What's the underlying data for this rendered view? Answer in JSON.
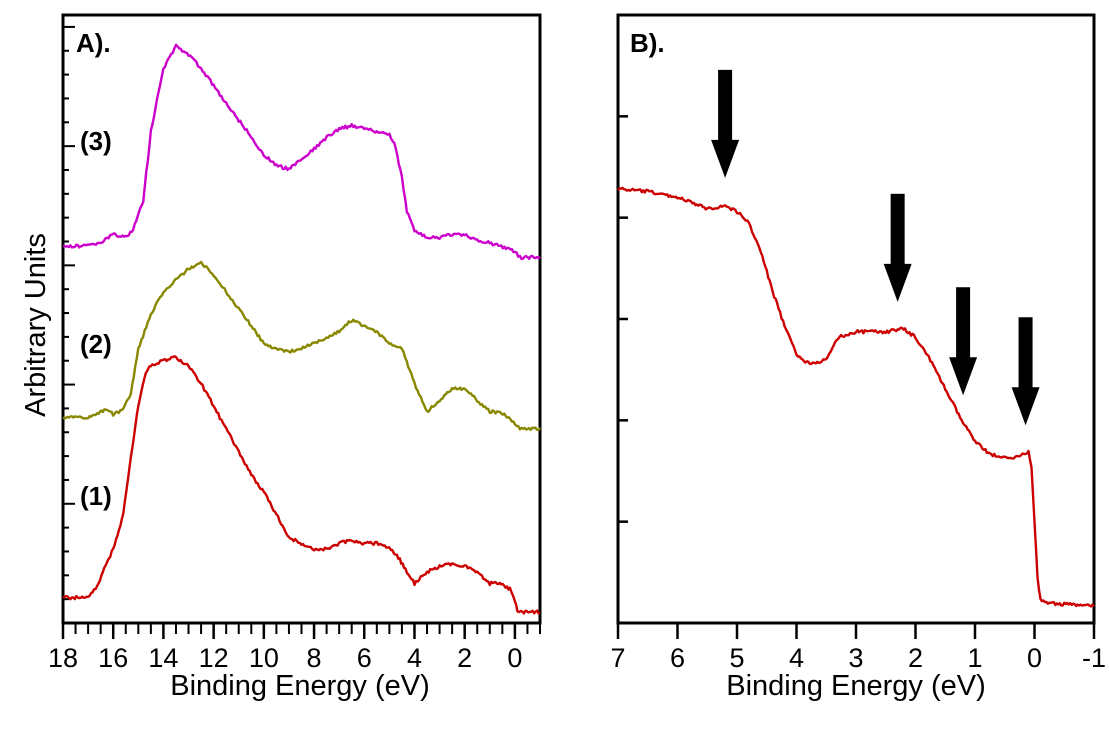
{
  "ylabel": "Arbitrary Units",
  "chart_data": [
    {
      "type": "line",
      "panel_label": "A).",
      "xlabel": "Binding Energy (eV)",
      "ylabel": "Arbitrary Units",
      "xlim": [
        18,
        -1
      ],
      "ylim": [
        0,
        1
      ],
      "x_axis_reversed": true,
      "x_ticks": [
        18,
        16,
        14,
        12,
        10,
        8,
        6,
        4,
        2,
        0
      ],
      "y_tick_labels_shown": false,
      "grid": false,
      "series": [
        {
          "name": "(1)",
          "color": "#cc0000",
          "points": [
            [
              -1,
              0.0
            ],
            [
              -0.3,
              0.0
            ],
            [
              -0.1,
              0.0
            ],
            [
              0.0,
              0.02
            ],
            [
              0.2,
              0.04
            ],
            [
              0.6,
              0.05
            ],
            [
              1,
              0.05
            ],
            [
              1.5,
              0.07
            ],
            [
              2,
              0.08
            ],
            [
              2.5,
              0.085
            ],
            [
              3,
              0.08
            ],
            [
              3.5,
              0.07
            ],
            [
              4,
              0.05
            ],
            [
              4.3,
              0.07
            ],
            [
              4.7,
              0.1
            ],
            [
              5,
              0.11
            ],
            [
              5.5,
              0.12
            ],
            [
              6,
              0.12
            ],
            [
              6.5,
              0.125
            ],
            [
              7,
              0.12
            ],
            [
              7.5,
              0.11
            ],
            [
              8,
              0.11
            ],
            [
              8.5,
              0.12
            ],
            [
              9,
              0.13
            ],
            [
              9.5,
              0.17
            ],
            [
              10,
              0.21
            ],
            [
              10.5,
              0.24
            ],
            [
              11,
              0.28
            ],
            [
              11.5,
              0.32
            ],
            [
              12,
              0.36
            ],
            [
              12.5,
              0.4
            ],
            [
              13,
              0.43
            ],
            [
              13.5,
              0.445
            ],
            [
              14,
              0.44
            ],
            [
              14.5,
              0.43
            ],
            [
              14.7,
              0.42
            ],
            [
              15,
              0.36
            ],
            [
              15.3,
              0.27
            ],
            [
              15.6,
              0.17
            ],
            [
              16,
              0.11
            ],
            [
              16.3,
              0.08
            ],
            [
              16.7,
              0.04
            ],
            [
              17,
              0.025
            ],
            [
              18,
              0.025
            ]
          ]
        },
        {
          "name": "(2)",
          "color": "#888800",
          "points": [
            [
              -1,
              0.32
            ],
            [
              -0.2,
              0.32
            ],
            [
              0.0,
              0.33
            ],
            [
              0.3,
              0.34
            ],
            [
              0.6,
              0.35
            ],
            [
              1,
              0.35
            ],
            [
              1.5,
              0.37
            ],
            [
              2,
              0.39
            ],
            [
              2.5,
              0.39
            ],
            [
              3,
              0.37
            ],
            [
              3.5,
              0.35
            ],
            [
              4,
              0.4
            ],
            [
              4.5,
              0.46
            ],
            [
              5,
              0.47
            ],
            [
              5.5,
              0.49
            ],
            [
              6,
              0.5
            ],
            [
              6.5,
              0.51
            ],
            [
              7,
              0.49
            ],
            [
              7.5,
              0.48
            ],
            [
              8,
              0.47
            ],
            [
              8.5,
              0.46
            ],
            [
              9,
              0.455
            ],
            [
              9.5,
              0.46
            ],
            [
              10,
              0.47
            ],
            [
              10.5,
              0.5
            ],
            [
              11,
              0.53
            ],
            [
              11.5,
              0.56
            ],
            [
              12,
              0.59
            ],
            [
              12.5,
              0.61
            ],
            [
              13,
              0.6
            ],
            [
              13.5,
              0.58
            ],
            [
              14,
              0.56
            ],
            [
              14.5,
              0.52
            ],
            [
              15,
              0.46
            ],
            [
              15.3,
              0.38
            ],
            [
              15.6,
              0.355
            ],
            [
              16,
              0.345
            ],
            [
              16.3,
              0.355
            ],
            [
              16.7,
              0.345
            ],
            [
              17,
              0.34
            ],
            [
              18,
              0.34
            ]
          ]
        },
        {
          "name": "(3)",
          "color": "#cc00cc",
          "points": [
            [
              -1,
              0.62
            ],
            [
              -0.2,
              0.62
            ],
            [
              0.0,
              0.63
            ],
            [
              0.3,
              0.635
            ],
            [
              0.6,
              0.64
            ],
            [
              1,
              0.645
            ],
            [
              1.5,
              0.65
            ],
            [
              2,
              0.66
            ],
            [
              2.5,
              0.66
            ],
            [
              3,
              0.655
            ],
            [
              3.5,
              0.655
            ],
            [
              4,
              0.665
            ],
            [
              4.3,
              0.7
            ],
            [
              4.5,
              0.76
            ],
            [
              4.8,
              0.82
            ],
            [
              5,
              0.835
            ],
            [
              5.5,
              0.84
            ],
            [
              6,
              0.845
            ],
            [
              6.5,
              0.85
            ],
            [
              7,
              0.845
            ],
            [
              7.5,
              0.83
            ],
            [
              8,
              0.81
            ],
            [
              8.5,
              0.79
            ],
            [
              9,
              0.775
            ],
            [
              9.5,
              0.78
            ],
            [
              10,
              0.8
            ],
            [
              10.5,
              0.83
            ],
            [
              11,
              0.86
            ],
            [
              11.5,
              0.89
            ],
            [
              12,
              0.92
            ],
            [
              12.5,
              0.95
            ],
            [
              13,
              0.975
            ],
            [
              13.5,
              0.99
            ],
            [
              14,
              0.95
            ],
            [
              14.5,
              0.84
            ],
            [
              14.8,
              0.72
            ],
            [
              15.2,
              0.67
            ],
            [
              15.5,
              0.655
            ],
            [
              16,
              0.66
            ],
            [
              16.5,
              0.645
            ],
            [
              17,
              0.64
            ],
            [
              18,
              0.64
            ]
          ]
        }
      ]
    },
    {
      "type": "line",
      "panel_label": "B).",
      "xlabel": "Binding Energy (eV)",
      "xlim": [
        7,
        -1
      ],
      "ylim": [
        0,
        1
      ],
      "x_axis_reversed": true,
      "x_ticks": [
        7,
        6,
        5,
        4,
        3,
        2,
        1,
        0,
        -1
      ],
      "y_tick_labels_shown": false,
      "grid": false,
      "arrows_at_x": [
        5.2,
        2.3,
        1.2,
        0.15
      ],
      "series": [
        {
          "color": "#cc0000",
          "points": [
            [
              7,
              0.74
            ],
            [
              6.5,
              0.735
            ],
            [
              6,
              0.725
            ],
            [
              5.5,
              0.705
            ],
            [
              5.2,
              0.71
            ],
            [
              5,
              0.7
            ],
            [
              4.8,
              0.68
            ],
            [
              4.6,
              0.63
            ],
            [
              4.4,
              0.56
            ],
            [
              4.2,
              0.5
            ],
            [
              4.0,
              0.45
            ],
            [
              3.8,
              0.435
            ],
            [
              3.5,
              0.44
            ],
            [
              3.3,
              0.48
            ],
            [
              3.0,
              0.49
            ],
            [
              2.5,
              0.49
            ],
            [
              2.2,
              0.495
            ],
            [
              2.0,
              0.48
            ],
            [
              1.8,
              0.45
            ],
            [
              1.6,
              0.41
            ],
            [
              1.4,
              0.37
            ],
            [
              1.2,
              0.33
            ],
            [
              1.0,
              0.3
            ],
            [
              0.8,
              0.28
            ],
            [
              0.6,
              0.27
            ],
            [
              0.4,
              0.27
            ],
            [
              0.2,
              0.275
            ],
            [
              0.1,
              0.28
            ],
            [
              0.05,
              0.25
            ],
            [
              0.0,
              0.16
            ],
            [
              -0.05,
              0.06
            ],
            [
              -0.1,
              0.02
            ],
            [
              -0.3,
              0.015
            ],
            [
              -1,
              0.01
            ]
          ]
        }
      ]
    }
  ]
}
